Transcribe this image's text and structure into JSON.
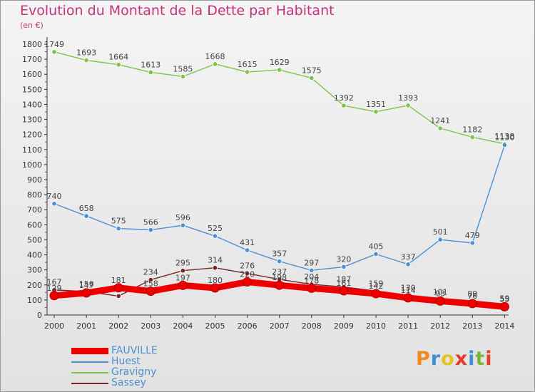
{
  "title": "Evolution du Montant de la Dette par Habitant",
  "subtitle": "(en €)",
  "logo": {
    "text": "Proxiti",
    "colors": [
      "#f08a1e",
      "#3d8fd6",
      "#e2c423",
      "#e8392b",
      "#3d8fd6",
      "#7bb83a",
      "#e8392b"
    ]
  },
  "chart_data": {
    "type": "line",
    "x": [
      2000,
      2001,
      2002,
      2003,
      2004,
      2005,
      2006,
      2007,
      2008,
      2009,
      2010,
      2011,
      2012,
      2013,
      2014
    ],
    "ylim": [
      0,
      1800
    ],
    "yticks": [
      0,
      100,
      200,
      300,
      400,
      500,
      600,
      700,
      800,
      900,
      1000,
      1100,
      1200,
      1300,
      1400,
      1500,
      1600,
      1700,
      1800
    ],
    "grid": false,
    "legend_position": "bottom-left",
    "series": [
      {
        "name": "FAUVILLE",
        "color": "#ee0000",
        "width": 9,
        "values": [
          129,
          147,
          181,
          158,
          197,
          180,
          220,
          198,
          178,
          161,
          142,
          114,
          93,
          76,
          55
        ],
        "labels": [
          "129",
          "147",
          "181",
          "158",
          "197",
          "180",
          "220",
          "198",
          "178",
          "161",
          "142",
          "114",
          "93",
          "76",
          "55"
        ]
      },
      {
        "name": "Huest",
        "color": "#4c8fd2",
        "width": 1.4,
        "values": [
          740,
          658,
          575,
          566,
          596,
          525,
          431,
          357,
          297,
          320,
          405,
          337,
          501,
          479,
          1130
        ],
        "labels": [
          "740",
          "658",
          "575",
          "566",
          "596",
          "525",
          "431",
          "357",
          "297",
          "320",
          "405",
          "337",
          "501",
          "479",
          "1130"
        ]
      },
      {
        "name": "Gravigny",
        "color": "#7cc44a",
        "width": 1.4,
        "values": [
          1749,
          1693,
          1664,
          1613,
          1585,
          1668,
          1615,
          1629,
          1575,
          1392,
          1351,
          1393,
          1241,
          1182,
          1138
        ],
        "labels": [
          "1749",
          "1693",
          "1664",
          "1613",
          "1585",
          "1668",
          "1615",
          "1629",
          "1575",
          "1392",
          "1351",
          "1393",
          "1241",
          "1182",
          "1138"
        ]
      },
      {
        "name": "Sassey",
        "color": "#7a2424",
        "width": 1.4,
        "values": [
          167,
          156,
          126,
          234,
          295,
          314,
          276,
          237,
          204,
          187,
          159,
          130,
          101,
          89,
          59
        ],
        "labels": [
          "167",
          "156",
          "",
          "234",
          "295",
          "314",
          "276",
          "237",
          "204",
          "187",
          "159",
          "130",
          "101",
          "89",
          "59"
        ]
      }
    ]
  }
}
